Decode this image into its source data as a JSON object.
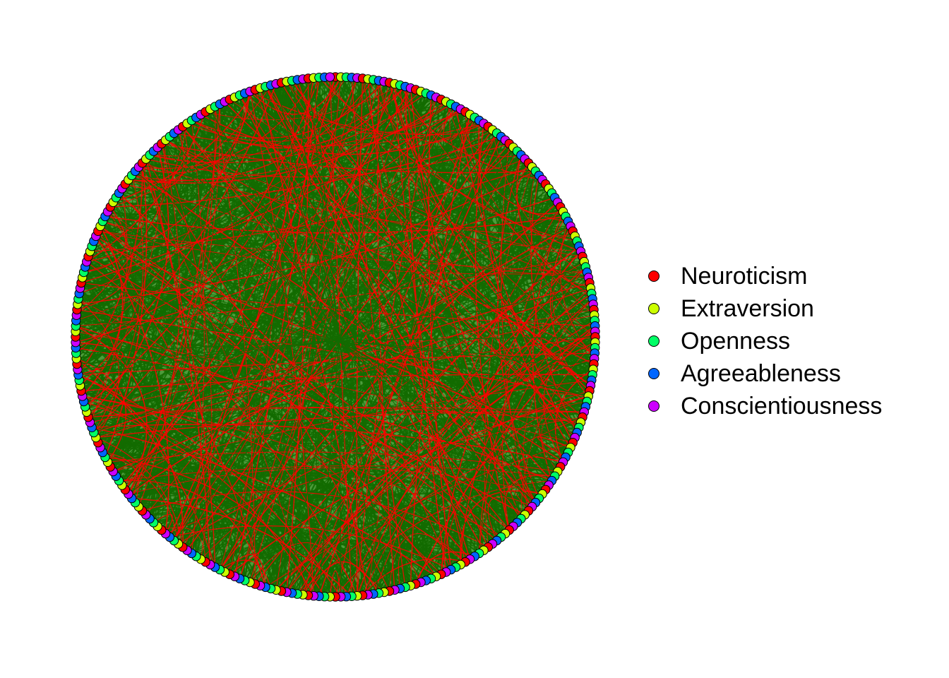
{
  "network": {
    "node_count": 300,
    "trait_order": [
      "Neuroticism",
      "Extraversion",
      "Openness",
      "Agreeableness",
      "Conscientiousness"
    ],
    "edge_colors": {
      "positive": "#136b00",
      "negative": "#ff0000"
    },
    "background_fill": "#2e8b1a"
  },
  "legend": {
    "items": [
      {
        "label": "Neuroticism",
        "color": "#ff0000"
      },
      {
        "label": "Extraversion",
        "color": "#ccff00"
      },
      {
        "label": "Openness",
        "color": "#00ff66"
      },
      {
        "label": "Agreeableness",
        "color": "#0066ff"
      },
      {
        "label": "Conscientiousness",
        "color": "#cc00ff"
      }
    ]
  }
}
